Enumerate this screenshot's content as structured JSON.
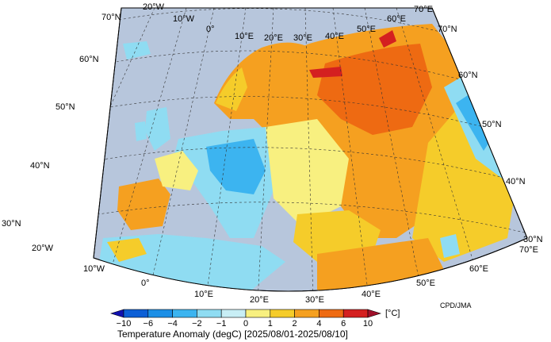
{
  "map": {
    "title": "Temperature Anomaly (degC) [2025/08/01-2025/08/10]",
    "credit": "CPD/JMA",
    "units": "[°C]",
    "longitude_labels_top": [
      "20°W",
      "10°W",
      "0°",
      "10°E",
      "20°E",
      "30°E",
      "40°E",
      "50°E",
      "60°E",
      "70°E"
    ],
    "longitude_labels_bottom": [
      "20°W",
      "10°W",
      "0°",
      "10°E",
      "20°E",
      "30°E",
      "40°E",
      "50°E",
      "60°E",
      "70°E"
    ],
    "latitude_labels_left": [
      "70°N",
      "60°N",
      "50°N",
      "40°N",
      "30°N"
    ],
    "latitude_labels_right": [
      "70°N",
      "60°N",
      "50°N",
      "40°N",
      "30°N"
    ]
  },
  "colorbar": {
    "ticks": [
      "−10",
      "−6",
      "−4",
      "−2",
      "−1",
      "0",
      "1",
      "2",
      "4",
      "6",
      "10"
    ],
    "colors": [
      "#1010b0",
      "#0c5fd6",
      "#1c8fe6",
      "#3cb4f0",
      "#8fdcf2",
      "#c8eef5",
      "#f8f080",
      "#f5cc2a",
      "#f5a020",
      "#ee6a12",
      "#d42020",
      "#a0102a"
    ]
  },
  "palette": {
    "sea": "#b7c6dc",
    "near_zero_cool": "#c8eef5",
    "cool_1": "#8fdcf2",
    "cool_2": "#3cb4f0",
    "warm_1": "#f8f080",
    "warm_2": "#f5cc2a",
    "warm_3": "#f5a020",
    "warm_4": "#ee6a12",
    "warm_5": "#d42020"
  }
}
